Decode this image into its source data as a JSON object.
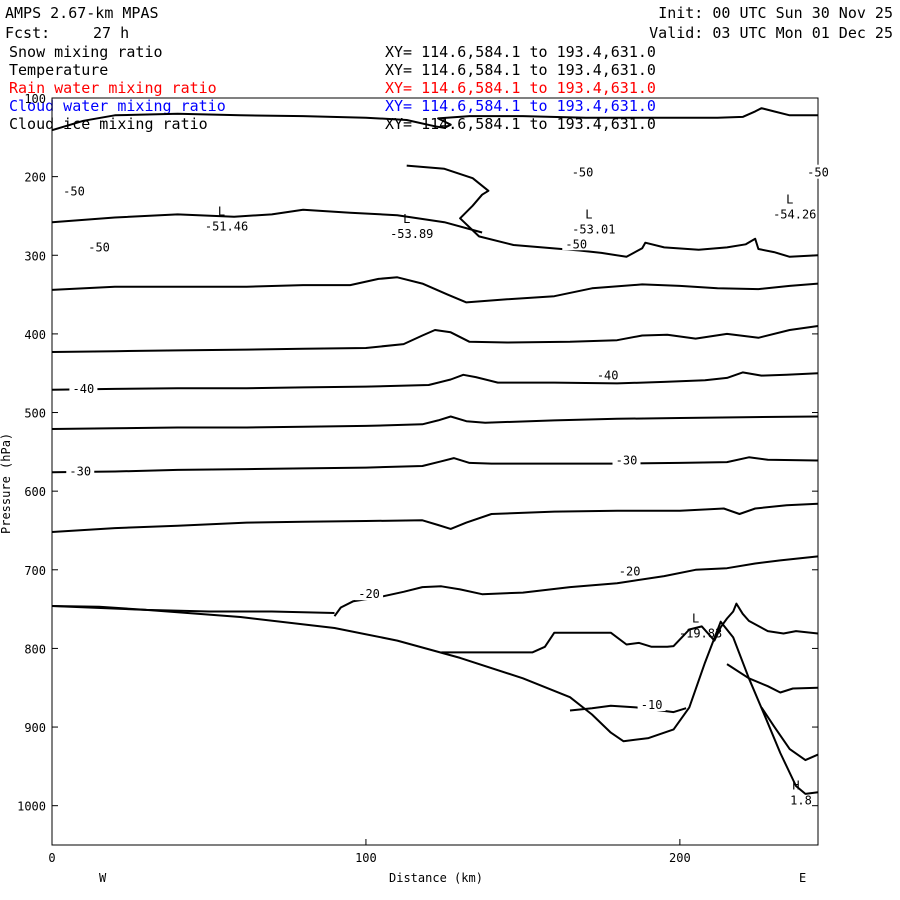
{
  "header": {
    "model": "AMPS 2.67-km MPAS",
    "fcst_label": "Fcst:",
    "fcst_value": "27 h",
    "init": "Init: 00 UTC Sun 30 Nov 25",
    "valid": "Valid: 03 UTC Mon 01 Dec 25"
  },
  "fields": [
    {
      "name": "Snow mixing ratio",
      "xy": "XY= 114.6,584.1 to 193.4,631.0",
      "color": "#000000"
    },
    {
      "name": "Temperature",
      "xy": "XY= 114.6,584.1 to 193.4,631.0",
      "color": "#000000"
    },
    {
      "name": "Rain water mixing ratio",
      "xy": "XY= 114.6,584.1 to 193.4,631.0",
      "color": "#ff0000"
    },
    {
      "name": "Cloud water mixing ratio",
      "xy": "XY= 114.6,584.1 to 193.4,631.0",
      "color": "#0000ff"
    },
    {
      "name": "Cloud ice mixing ratio",
      "xy": "XY= 114.6,584.1 to 193.4,631.0",
      "color": "#000000"
    }
  ],
  "chart_data": {
    "type": "line",
    "xlabel": "Distance (km)",
    "ylabel": "Pressure (hPa)",
    "xlim": [
      0,
      244
    ],
    "ylim": [
      1050,
      100
    ],
    "xticks": [
      0,
      100,
      200
    ],
    "yticks": [
      100,
      200,
      300,
      400,
      500,
      600,
      700,
      800,
      900,
      1000
    ],
    "direction_labels": {
      "left": "W",
      "right": "E"
    },
    "terrain": [
      [
        0,
        746
      ],
      [
        30,
        751
      ],
      [
        60,
        760
      ],
      [
        90,
        774
      ],
      [
        110,
        790
      ],
      [
        130,
        812
      ],
      [
        150,
        838
      ],
      [
        165,
        862
      ],
      [
        172,
        884
      ],
      [
        178,
        907
      ],
      [
        182,
        918
      ],
      [
        190,
        914
      ],
      [
        198,
        903
      ],
      [
        203,
        875
      ],
      [
        208,
        818
      ],
      [
        213,
        766
      ],
      [
        217,
        786
      ],
      [
        222,
        838
      ],
      [
        227,
        885
      ],
      [
        232,
        933
      ],
      [
        237,
        975
      ],
      [
        240,
        985
      ],
      [
        244,
        983
      ]
    ],
    "contours": [
      {
        "label": "-50",
        "points": [
          [
            0,
            141
          ],
          [
            10,
            129
          ],
          [
            20,
            122
          ],
          [
            40,
            120
          ],
          [
            60,
            122
          ],
          [
            80,
            123
          ],
          [
            100,
            125
          ],
          [
            113,
            128
          ],
          [
            122,
            136
          ],
          [
            125,
            138
          ],
          [
            127,
            134
          ],
          [
            123,
            126
          ],
          [
            133,
            123
          ],
          [
            150,
            123
          ],
          [
            170,
            125
          ],
          [
            190,
            125
          ],
          [
            200,
            125
          ],
          [
            212,
            125
          ],
          [
            220,
            124
          ],
          [
            224,
            117
          ],
          [
            226,
            113
          ],
          [
            230,
            117
          ],
          [
            235,
            122
          ],
          [
            244,
            122
          ]
        ]
      },
      {
        "label": "-50",
        "points": [
          [
            113,
            186
          ],
          [
            125,
            190
          ],
          [
            134,
            202
          ],
          [
            139,
            218
          ],
          [
            137,
            223
          ],
          [
            134,
            237
          ],
          [
            130,
            253
          ],
          [
            136,
            276
          ],
          [
            147,
            287
          ],
          [
            168,
            294
          ],
          [
            175,
            297
          ],
          [
            183,
            302
          ],
          [
            188,
            291
          ],
          [
            189,
            284
          ],
          [
            195,
            290
          ],
          [
            206,
            293
          ],
          [
            215,
            290
          ],
          [
            221,
            286
          ],
          [
            224,
            279
          ],
          [
            225,
            292
          ],
          [
            230,
            296
          ],
          [
            235,
            302
          ],
          [
            244,
            300
          ]
        ]
      },
      {
        "label": "-50",
        "points": [
          [
            0,
            258
          ],
          [
            20,
            252
          ],
          [
            40,
            248
          ],
          [
            58,
            251
          ],
          [
            70,
            248
          ],
          [
            80,
            242
          ],
          [
            95,
            246
          ],
          [
            110,
            249
          ],
          [
            125,
            258
          ],
          [
            137,
            271
          ]
        ]
      },
      {
        "label": "-50",
        "points": [
          [
            0,
            344
          ],
          [
            20,
            340
          ],
          [
            40,
            340
          ],
          [
            62,
            340
          ],
          [
            80,
            338
          ],
          [
            95,
            338
          ],
          [
            104,
            330
          ],
          [
            110,
            328
          ],
          [
            118,
            336
          ],
          [
            126,
            350
          ],
          [
            132,
            360
          ],
          [
            145,
            356
          ],
          [
            160,
            352
          ],
          [
            172,
            342
          ],
          [
            188,
            337
          ],
          [
            200,
            339
          ],
          [
            212,
            342
          ],
          [
            225,
            343
          ],
          [
            235,
            339
          ],
          [
            244,
            336
          ]
        ]
      },
      {
        "label": "",
        "points": [
          [
            0,
            423
          ],
          [
            20,
            422
          ],
          [
            40,
            421
          ],
          [
            62,
            420
          ],
          [
            80,
            419
          ],
          [
            100,
            418
          ],
          [
            112,
            413
          ],
          [
            118,
            402
          ],
          [
            122,
            395
          ],
          [
            127,
            398
          ],
          [
            133,
            410
          ],
          [
            145,
            411
          ],
          [
            165,
            410
          ],
          [
            180,
            408
          ],
          [
            188,
            402
          ],
          [
            196,
            401
          ],
          [
            205,
            406
          ],
          [
            215,
            400
          ],
          [
            225,
            405
          ],
          [
            235,
            395
          ],
          [
            244,
            390
          ]
        ]
      },
      {
        "label": "-40",
        "points": [
          [
            0,
            471
          ],
          [
            20,
            470
          ],
          [
            40,
            469
          ],
          [
            62,
            469
          ],
          [
            80,
            468
          ],
          [
            100,
            467
          ],
          [
            120,
            465
          ],
          [
            127,
            458
          ],
          [
            131,
            452
          ],
          [
            135,
            455
          ],
          [
            142,
            462
          ],
          [
            160,
            462
          ],
          [
            180,
            463
          ],
          [
            195,
            461
          ],
          [
            208,
            459
          ],
          [
            215,
            456
          ],
          [
            220,
            449
          ],
          [
            226,
            453
          ],
          [
            234,
            452
          ],
          [
            244,
            450
          ]
        ]
      },
      {
        "label": "",
        "points": [
          [
            0,
            521
          ],
          [
            20,
            520
          ],
          [
            40,
            519
          ],
          [
            62,
            519
          ],
          [
            80,
            518
          ],
          [
            100,
            517
          ],
          [
            118,
            515
          ],
          [
            123,
            510
          ],
          [
            127,
            505
          ],
          [
            132,
            511
          ],
          [
            138,
            513
          ],
          [
            160,
            510
          ],
          [
            180,
            508
          ],
          [
            200,
            507
          ],
          [
            220,
            506
          ],
          [
            244,
            505
          ]
        ]
      },
      {
        "label": "-30",
        "points": [
          [
            0,
            576
          ],
          [
            20,
            575
          ],
          [
            40,
            573
          ],
          [
            62,
            572
          ],
          [
            80,
            571
          ],
          [
            100,
            570
          ],
          [
            118,
            568
          ],
          [
            124,
            562
          ],
          [
            128,
            558
          ],
          [
            133,
            564
          ],
          [
            140,
            565
          ],
          [
            160,
            565
          ],
          [
            180,
            565
          ],
          [
            200,
            564
          ],
          [
            215,
            563
          ],
          [
            222,
            557
          ],
          [
            228,
            560
          ],
          [
            244,
            561
          ]
        ]
      },
      {
        "label": "",
        "points": [
          [
            0,
            652
          ],
          [
            20,
            647
          ],
          [
            40,
            644
          ],
          [
            62,
            640
          ],
          [
            80,
            639
          ],
          [
            100,
            638
          ],
          [
            118,
            637
          ],
          [
            123,
            643
          ],
          [
            127,
            648
          ],
          [
            132,
            640
          ],
          [
            140,
            629
          ],
          [
            160,
            626
          ],
          [
            180,
            625
          ],
          [
            200,
            625
          ],
          [
            214,
            622
          ],
          [
            219,
            629
          ],
          [
            224,
            622
          ],
          [
            234,
            618
          ],
          [
            244,
            616
          ]
        ]
      },
      {
        "label": "-20",
        "points": [
          [
            90,
            759
          ],
          [
            92,
            748
          ],
          [
            96,
            740
          ],
          [
            104,
            735
          ],
          [
            112,
            728
          ],
          [
            118,
            722
          ],
          [
            124,
            721
          ],
          [
            130,
            725
          ],
          [
            137,
            731
          ],
          [
            150,
            729
          ],
          [
            165,
            722
          ],
          [
            180,
            717
          ],
          [
            195,
            708
          ],
          [
            205,
            700
          ],
          [
            215,
            698
          ],
          [
            224,
            692
          ],
          [
            232,
            688
          ],
          [
            244,
            683
          ]
        ]
      },
      {
        "label": "-20",
        "points": [
          [
            0,
            746
          ],
          [
            15,
            747
          ],
          [
            30,
            751
          ],
          [
            50,
            753
          ],
          [
            70,
            753
          ],
          [
            90,
            755
          ]
        ]
      },
      {
        "label": "",
        "points": [
          [
            124,
            805
          ],
          [
            140,
            805
          ],
          [
            145,
            805
          ],
          [
            153,
            805
          ],
          [
            157,
            798
          ],
          [
            160,
            780
          ],
          [
            168,
            780
          ],
          [
            178,
            780
          ],
          [
            183,
            795
          ],
          [
            187,
            793
          ],
          [
            191,
            798
          ],
          [
            196,
            798
          ],
          [
            198,
            797
          ],
          [
            203,
            776
          ],
          [
            207,
            772
          ],
          [
            211,
            790
          ],
          [
            213,
            773
          ],
          [
            215,
            762
          ],
          [
            217,
            753
          ],
          [
            218,
            743
          ],
          [
            220,
            756
          ],
          [
            222,
            765
          ],
          [
            228,
            778
          ],
          [
            233,
            781
          ],
          [
            237,
            778
          ],
          [
            244,
            781
          ]
        ]
      },
      {
        "label": "",
        "points": [
          [
            215,
            820
          ],
          [
            222,
            838
          ],
          [
            228,
            848
          ],
          [
            232,
            856
          ],
          [
            236,
            851
          ],
          [
            244,
            850
          ]
        ]
      },
      {
        "label": "-10",
        "points": [
          [
            165,
            879
          ],
          [
            172,
            876
          ],
          [
            178,
            873
          ],
          [
            186,
            875
          ],
          [
            198,
            881
          ],
          [
            202,
            876
          ]
        ]
      },
      {
        "label": "",
        "points": [
          [
            226,
            875
          ],
          [
            230,
            899
          ],
          [
            235,
            928
          ],
          [
            240,
            942
          ],
          [
            244,
            935
          ]
        ]
      }
    ],
    "annotations": [
      {
        "text": "L",
        "value": "-51.46"
      },
      {
        "text": "L",
        "value": "-53.89"
      },
      {
        "text": "L",
        "value": "-53.01"
      },
      {
        "text": "L",
        "value": "-54.26"
      },
      {
        "text": "L",
        "value": "-19.83"
      },
      {
        "text": "H",
        "value": "1.8"
      }
    ],
    "contour_labels": [
      "-50",
      "-50",
      "-50",
      "-50",
      "-40",
      "-40",
      "-30",
      "-30",
      "-20",
      "-20",
      "-10"
    ]
  }
}
